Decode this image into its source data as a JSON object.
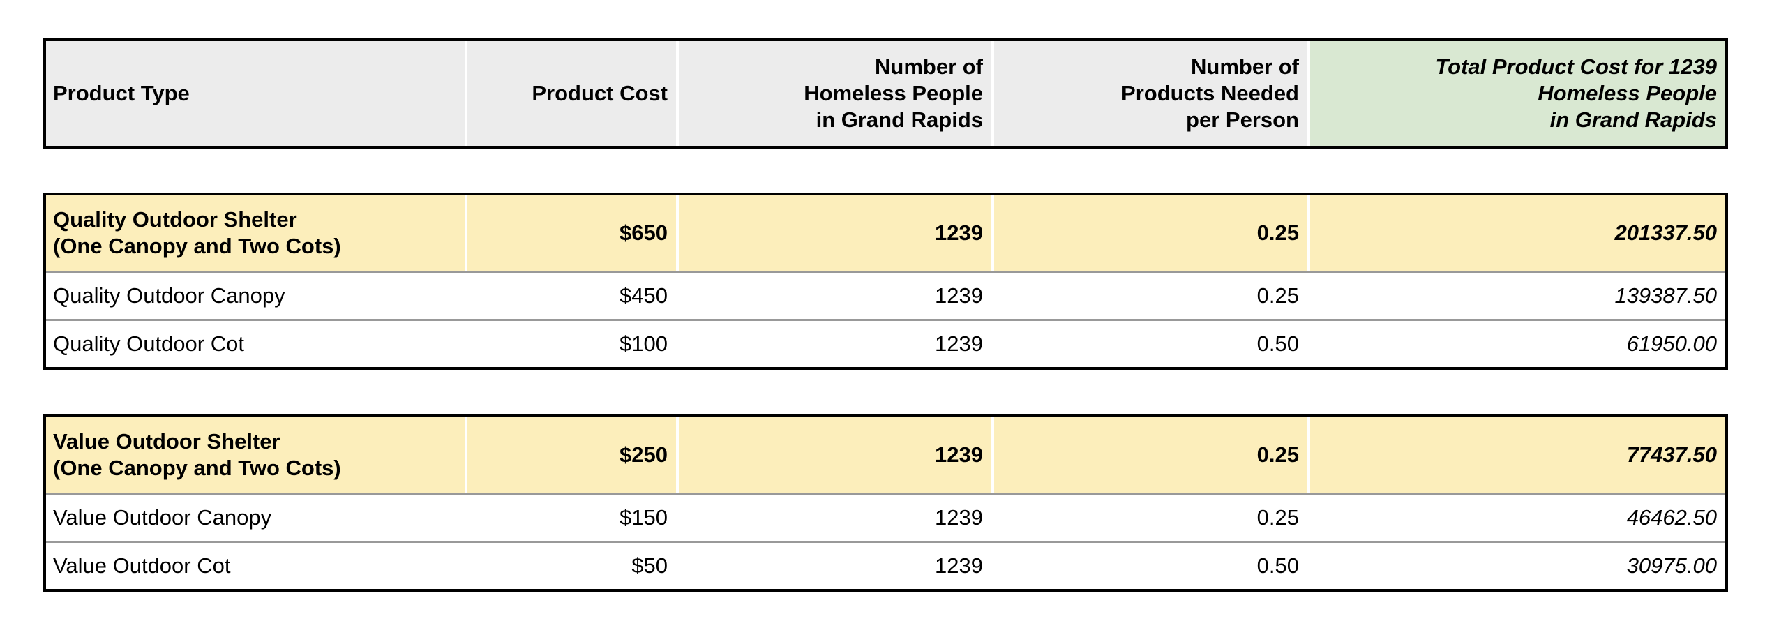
{
  "colors": {
    "header_bg": "#ececec",
    "total_header_bg": "#d9e8d2",
    "highlight_row_bg": "#fceebb",
    "row_divider": "#999999",
    "table_border": "#000000"
  },
  "table": {
    "headers": [
      {
        "label": "Product Type"
      },
      {
        "label": "Product Cost"
      },
      {
        "label": "Number of\nHomeless People\nin Grand Rapids"
      },
      {
        "label": "Number of\nProducts Needed\nper Person"
      },
      {
        "label": "Total Product Cost for 1239\nHomeless People\nin Grand Rapids"
      }
    ],
    "sections": [
      {
        "name": "quality",
        "rows": [
          {
            "product": "Quality Outdoor Shelter\n(One Canopy and Two Cots)",
            "product_cost": "$650",
            "num_homeless": "1239",
            "products_per_person": "0.25",
            "total_cost": "201337.50"
          },
          {
            "product": "Quality Outdoor Canopy",
            "product_cost": "$450",
            "num_homeless": "1239",
            "products_per_person": "0.25",
            "total_cost": "139387.50"
          },
          {
            "product": "Quality Outdoor Cot",
            "product_cost": "$100",
            "num_homeless": "1239",
            "products_per_person": "0.50",
            "total_cost": "61950.00"
          }
        ]
      },
      {
        "name": "value",
        "rows": [
          {
            "product": "Value Outdoor Shelter\n(One Canopy and Two Cots)",
            "product_cost": "$250",
            "num_homeless": "1239",
            "products_per_person": "0.25",
            "total_cost": "77437.50"
          },
          {
            "product": "Value Outdoor Canopy",
            "product_cost": "$150",
            "num_homeless": "1239",
            "products_per_person": "0.25",
            "total_cost": "46462.50"
          },
          {
            "product": "Value Outdoor Cot",
            "product_cost": "$50",
            "num_homeless": "1239",
            "products_per_person": "0.50",
            "total_cost": "30975.00"
          }
        ]
      }
    ]
  }
}
